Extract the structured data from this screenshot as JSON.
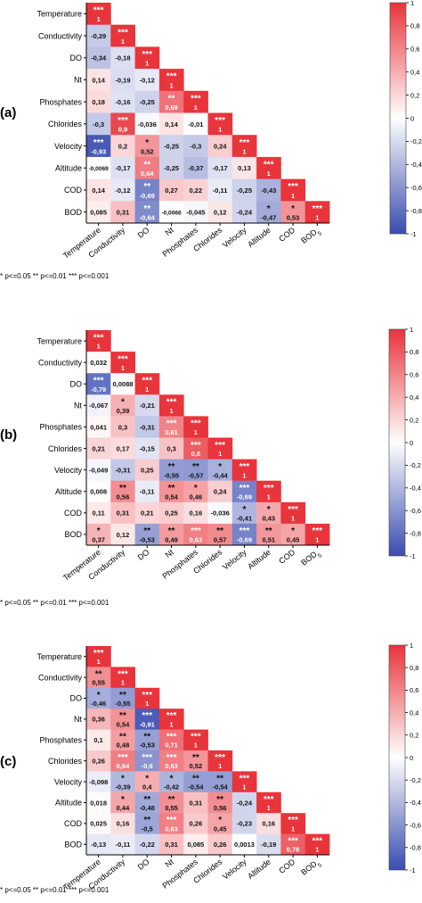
{
  "significance_note": "* p<=0.05   ** p<=0.01   *** p<=0.001",
  "colorbar": {
    "ticks": [
      "1",
      "0,8",
      "0,6",
      "0,4",
      "0,2",
      "0",
      "-0,2",
      "-0,4",
      "-0,6",
      "-0,8",
      "-1"
    ],
    "colors": {
      "negative": "#3a4cb0",
      "neutral": "#ffffff",
      "positive": "#e8343b"
    }
  },
  "chart_data": [
    {
      "type": "heatmap",
      "panel_label": "(a)",
      "variables": [
        "Temperature",
        "Conductivity",
        "DO",
        "Nt",
        "Phosphates",
        "Chlorides",
        "Velocity",
        "Altitude",
        "COD",
        "BOD"
      ],
      "x_tick_labels": [
        "Temperature",
        "Conductivity",
        "DO",
        "Nt",
        "Phosphates",
        "Chlorides",
        "Velocity",
        "Altitude",
        "COD",
        "BOD5"
      ],
      "value_range": [
        -1,
        1
      ],
      "rows": [
        {
          "values": [
            1
          ],
          "labels": [
            "1"
          ],
          "stars": [
            "***"
          ]
        },
        {
          "values": [
            -0.29,
            1
          ],
          "labels": [
            "-0,29",
            "1"
          ],
          "stars": [
            "",
            "***"
          ]
        },
        {
          "values": [
            -0.34,
            -0.18,
            1
          ],
          "labels": [
            "-0,34",
            "-0,18",
            "1"
          ],
          "stars": [
            "",
            "",
            "***"
          ]
        },
        {
          "values": [
            0.14,
            -0.19,
            -0.12,
            1
          ],
          "labels": [
            "0,14",
            "-0,19",
            "-0,12",
            "1"
          ],
          "stars": [
            "",
            "",
            "",
            "***"
          ]
        },
        {
          "values": [
            0.18,
            -0.16,
            -0.25,
            0.69,
            1
          ],
          "labels": [
            "0,18",
            "-0,16",
            "-0,25",
            "0,69",
            "1"
          ],
          "stars": [
            "",
            "",
            "",
            "**",
            "***"
          ]
        },
        {
          "values": [
            -0.3,
            0.9,
            -0.036,
            0.14,
            -0.01,
            1
          ],
          "labels": [
            "-0,3",
            "0,9",
            "-0,036",
            "0,14",
            "-0,01",
            "1"
          ],
          "stars": [
            "",
            "***",
            "",
            "",
            "",
            "***"
          ]
        },
        {
          "values": [
            -0.93,
            0.2,
            0.52,
            -0.25,
            -0.3,
            0.24,
            1
          ],
          "labels": [
            "-0,93",
            "0,2",
            "0,52",
            "-0,25",
            "-0,3",
            "0,24",
            "1"
          ],
          "stars": [
            "***",
            "",
            "*",
            "",
            "",
            "",
            "***"
          ]
        },
        {
          "values": [
            -0.0069,
            -0.17,
            0.64,
            -0.25,
            -0.37,
            -0.17,
            0.13,
            1
          ],
          "labels": [
            "-0,0069",
            "-0,17",
            "0,64",
            "-0,25",
            "-0,37",
            "-0,17",
            "0,13",
            "1"
          ],
          "stars": [
            "",
            "",
            "**",
            "",
            "",
            "",
            "",
            "***"
          ]
        },
        {
          "values": [
            0.14,
            -0.12,
            -0.69,
            0.27,
            0.22,
            -0.11,
            -0.25,
            -0.43,
            1
          ],
          "labels": [
            "0,14",
            "-0,12",
            "-0,69",
            "0,27",
            "0,22",
            "-0,11",
            "-0,25",
            "-0,43",
            "1"
          ],
          "stars": [
            "",
            "",
            "**",
            "",
            "",
            "",
            "",
            "",
            "***"
          ]
        },
        {
          "values": [
            0.085,
            0.31,
            -0.64,
            -0.0066,
            -0.045,
            0.12,
            -0.24,
            -0.47,
            0.53,
            1
          ],
          "labels": [
            "0,085",
            "0,31",
            "-0,64",
            "-0,0066",
            "-0,045",
            "0,12",
            "-0,24",
            "-0,47",
            "0,53",
            "1"
          ],
          "stars": [
            "",
            "",
            "**",
            "",
            "",
            "",
            "",
            "*",
            "*",
            "***"
          ]
        }
      ]
    },
    {
      "type": "heatmap",
      "panel_label": "(b)",
      "variables": [
        "Temperature",
        "Conductivity",
        "DO",
        "Nt",
        "Phosphates",
        "Chlorides",
        "Velocity",
        "Altitude",
        "COD",
        "BOD"
      ],
      "x_tick_labels": [
        "Temperature",
        "Conductivity",
        "DO",
        "Nt",
        "Phosphates",
        "Chlorides",
        "Velocity",
        "Altitude",
        "COD",
        "BOD5"
      ],
      "value_range": [
        -1,
        1
      ],
      "rows": [
        {
          "values": [
            1
          ],
          "labels": [
            "1"
          ],
          "stars": [
            "***"
          ]
        },
        {
          "values": [
            0.032,
            1
          ],
          "labels": [
            "0,032",
            "1"
          ],
          "stars": [
            "",
            "***"
          ]
        },
        {
          "values": [
            -0.79,
            0.0088,
            1
          ],
          "labels": [
            "-0,79",
            "0,0088",
            "1"
          ],
          "stars": [
            "***",
            "",
            "***"
          ]
        },
        {
          "values": [
            -0.067,
            0.39,
            -0.21,
            1
          ],
          "labels": [
            "-0,067",
            "0,39",
            "-0,21",
            "1"
          ],
          "stars": [
            "",
            "*",
            "",
            "***"
          ]
        },
        {
          "values": [
            0.041,
            0.3,
            -0.31,
            0.61,
            1
          ],
          "labels": [
            "0,041",
            "0,3",
            "-0,31",
            "0,61",
            "1"
          ],
          "stars": [
            "",
            "",
            "",
            "***",
            "***"
          ]
        },
        {
          "values": [
            0.21,
            0.17,
            -0.15,
            0.3,
            0.8,
            1
          ],
          "labels": [
            "0,21",
            "0,17",
            "-0,15",
            "0,3",
            "0,8",
            "1"
          ],
          "stars": [
            "",
            "",
            "",
            "",
            "***",
            "***"
          ]
        },
        {
          "values": [
            -0.049,
            -0.31,
            0.25,
            -0.55,
            -0.57,
            -0.44,
            1
          ],
          "labels": [
            "-0,049",
            "-0,31",
            "0,25",
            "-0,55",
            "-0,57",
            "-0,44",
            "1"
          ],
          "stars": [
            "",
            "",
            "",
            "**",
            "**",
            "*",
            "***"
          ]
        },
        {
          "values": [
            0.008,
            0.56,
            -0.11,
            0.54,
            0.46,
            0.24,
            -0.69,
            1
          ],
          "labels": [
            "0,008",
            "0,56",
            "-0,11",
            "0,54",
            "0,46",
            "0,24",
            "-0,69",
            "1"
          ],
          "stars": [
            "",
            "**",
            "",
            "**",
            "*",
            "",
            "***",
            "***"
          ]
        },
        {
          "values": [
            0.11,
            0.31,
            0.21,
            0.25,
            0.16,
            -0.036,
            -0.41,
            0.43,
            1
          ],
          "labels": [
            "0,11",
            "0,31",
            "0,21",
            "0,25",
            "0,16",
            "-0,036",
            "-0,41",
            "0,43",
            "1"
          ],
          "stars": [
            "",
            "",
            "",
            "",
            "",
            "",
            "*",
            "*",
            "***"
          ]
        },
        {
          "values": [
            0.37,
            0.12,
            -0.53,
            0.49,
            0.63,
            0.57,
            -0.69,
            0.51,
            0.45,
            1
          ],
          "labels": [
            "0,37",
            "0,12",
            "-0,53",
            "0,49",
            "0,63",
            "0,57",
            "-0,69",
            "0,51",
            "0,45",
            "1"
          ],
          "stars": [
            "*",
            "",
            "**",
            "**",
            "***",
            "**",
            "***",
            "**",
            "*",
            "***"
          ]
        }
      ]
    },
    {
      "type": "heatmap",
      "panel_label": "(c)",
      "variables": [
        "Temperature",
        "Conductivity",
        "DO",
        "Nt",
        "Phosphates",
        "Chlorides",
        "Velocity",
        "Altitude",
        "COD",
        "BOD"
      ],
      "x_tick_labels": [
        "Temperature",
        "Conductivity",
        "DO",
        "Nt",
        "Phosphates",
        "Chlorides",
        "Velocity",
        "Altitude",
        "COD",
        "BOD5"
      ],
      "value_range": [
        -1,
        1
      ],
      "rows": [
        {
          "values": [
            1
          ],
          "labels": [
            "1"
          ],
          "stars": [
            "***"
          ]
        },
        {
          "values": [
            0.55,
            1
          ],
          "labels": [
            "0,55",
            "1"
          ],
          "stars": [
            "**",
            "***"
          ]
        },
        {
          "values": [
            -0.46,
            -0.55,
            1
          ],
          "labels": [
            "-0,46",
            "-0,55",
            "1"
          ],
          "stars": [
            "*",
            "**",
            "***"
          ]
        },
        {
          "values": [
            0.36,
            0.54,
            -0.91,
            1
          ],
          "labels": [
            "0,36",
            "0,54",
            "-0,91",
            "1"
          ],
          "stars": [
            "",
            "**",
            "***",
            "***"
          ]
        },
        {
          "values": [
            0.1,
            0.48,
            -0.53,
            0.71,
            1
          ],
          "labels": [
            "0,1",
            "0,48",
            "-0,53",
            "0,71",
            "1"
          ],
          "stars": [
            "",
            "**",
            "**",
            "***",
            "***"
          ]
        },
        {
          "values": [
            0.26,
            0.64,
            -0.6,
            0.63,
            0.52,
            1
          ],
          "labels": [
            "0,26",
            "0,64",
            "-0,6",
            "0,63",
            "0,52",
            "1"
          ],
          "stars": [
            "",
            "***",
            "***",
            "***",
            "**",
            "***"
          ]
        },
        {
          "values": [
            -0.098,
            -0.39,
            0.4,
            -0.42,
            -0.54,
            -0.54,
            1
          ],
          "labels": [
            "-0,098",
            "-0,39",
            "0,4",
            "-0,42",
            "-0,54",
            "-0,54",
            "1"
          ],
          "stars": [
            "",
            "*",
            "*",
            "*",
            "**",
            "**",
            "***"
          ]
        },
        {
          "values": [
            0.018,
            0.44,
            -0.48,
            0.55,
            0.31,
            0.56,
            -0.24,
            1
          ],
          "labels": [
            "0,018",
            "0,44",
            "-0,48",
            "0,55",
            "0,31",
            "0,56",
            "-0,24",
            "1"
          ],
          "stars": [
            "",
            "*",
            "**",
            "**",
            "",
            "**",
            "",
            "***"
          ]
        },
        {
          "values": [
            0.025,
            0.16,
            -0.5,
            0.63,
            0.26,
            0.45,
            -0.23,
            0.16,
            1
          ],
          "labels": [
            "0,025",
            "0,16",
            "-0,5",
            "0,63",
            "0,26",
            "0,45",
            "-0,23",
            "0,16",
            "1"
          ],
          "stars": [
            "",
            "",
            "**",
            "***",
            "",
            "*",
            "",
            "",
            "***"
          ]
        },
        {
          "values": [
            -0.13,
            -0.11,
            -0.22,
            0.31,
            0.085,
            0.26,
            0.0013,
            -0.19,
            0.78,
            1
          ],
          "labels": [
            "-0,13",
            "-0,11",
            "-0,22",
            "0,31",
            "0,085",
            "0,26",
            "0,0013",
            "-0,19",
            "0,78",
            "1"
          ],
          "stars": [
            "",
            "",
            "",
            "",
            "",
            "",
            "",
            "",
            "***",
            "***"
          ]
        }
      ]
    }
  ]
}
